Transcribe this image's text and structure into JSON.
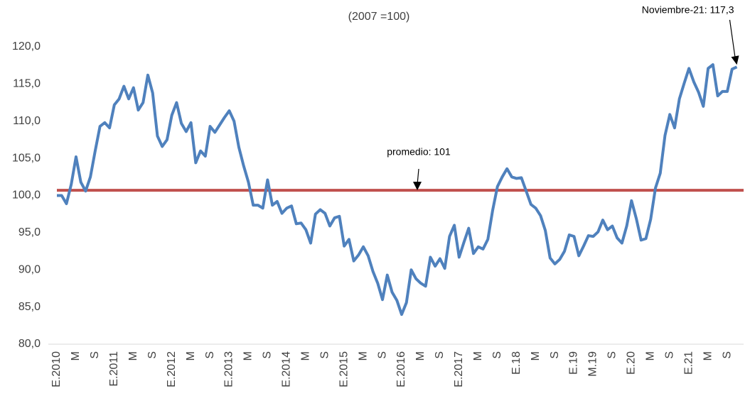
{
  "chart_data": {
    "type": "line",
    "subtitle": "(2007 =100)",
    "categories": [
      "E.2010",
      null,
      null,
      null,
      "M",
      null,
      null,
      null,
      "S",
      null,
      null,
      null,
      "E.2011",
      null,
      null,
      null,
      "M",
      null,
      null,
      null,
      "S",
      null,
      null,
      null,
      "E.2012",
      null,
      null,
      null,
      "M",
      null,
      null,
      null,
      "S",
      null,
      null,
      null,
      "E.2013",
      null,
      null,
      null,
      "M",
      null,
      null,
      null,
      "S",
      null,
      null,
      null,
      "E.2014",
      null,
      null,
      null,
      "M",
      null,
      null,
      null,
      "S",
      null,
      null,
      null,
      "E.2015",
      null,
      null,
      null,
      "M",
      null,
      null,
      null,
      "S",
      null,
      null,
      null,
      "E.2016",
      null,
      null,
      null,
      "M",
      null,
      null,
      null,
      "S",
      null,
      null,
      null,
      "E.2017",
      null,
      null,
      null,
      "M",
      null,
      null,
      null,
      "S",
      null,
      null,
      null,
      "E.18",
      null,
      null,
      null,
      "M",
      null,
      null,
      null,
      "S",
      null,
      null,
      null,
      "E.19",
      null,
      null,
      null,
      "M.19",
      null,
      null,
      null,
      "S",
      null,
      null,
      null,
      "E.20",
      null,
      null,
      null,
      "M",
      null,
      null,
      null,
      "S",
      null,
      null,
      null,
      "E.21",
      null,
      null,
      null,
      "M",
      null,
      null,
      null,
      "S",
      null,
      null
    ],
    "series": [
      {
        "color": "#4f81bd",
        "values": [
          100,
          100,
          98.9,
          101.5,
          105.2,
          101.8,
          100.6,
          102.5,
          106,
          109.3,
          109.8,
          109.1,
          112.2,
          113,
          114.7,
          113,
          114.5,
          111.5,
          112.5,
          116.2,
          113.8,
          108,
          106.6,
          107.5,
          110.8,
          112.5,
          109.7,
          108.6,
          109.8,
          104.4,
          106,
          105.3,
          109.3,
          108.5,
          109.5,
          110.5,
          111.4,
          110,
          106.5,
          104,
          101.8,
          98.7,
          98.7,
          98.3,
          102.1,
          98.7,
          99.2,
          97.6,
          98.3,
          98.6,
          96.2,
          96.3,
          95.4,
          93.6,
          97.5,
          98.1,
          97.6,
          95.9,
          97,
          97.2,
          93.2,
          94.1,
          91.2,
          92,
          93.1,
          91.9,
          89.8,
          88.2,
          86,
          89.3,
          87,
          85.9,
          84,
          85.6,
          90,
          88.8,
          88.2,
          87.8,
          91.7,
          90.5,
          91.5,
          90.2,
          94.5,
          96,
          91.7,
          93.7,
          95.6,
          92.2,
          93.1,
          92.8,
          94.1,
          98,
          101.2,
          102.5,
          103.6,
          102.5,
          102.3,
          102.4,
          100.6,
          98.8,
          98.3,
          97.3,
          95.3,
          91.6,
          90.8,
          91.4,
          92.5,
          94.7,
          94.5,
          91.9,
          93.2,
          94.6,
          94.5,
          95.1,
          96.7,
          95.4,
          95.9,
          94.3,
          93.6,
          95.9,
          99.3,
          96.9,
          94,
          94.2,
          96.8,
          101,
          103,
          108.1,
          110.9,
          109.1,
          113,
          115.1,
          117.1,
          115.3,
          113.9,
          112,
          117.1,
          117.6,
          113.4,
          114,
          114,
          117,
          117.3
        ]
      }
    ],
    "reference_line": {
      "value": 100.7,
      "color": "#c0504d",
      "label": "promedio: 101"
    },
    "last_point_label": "Noviembre-21: 117,3",
    "ylim": [
      80,
      120
    ],
    "yticks": [
      {
        "value": 80,
        "label": "80,0"
      },
      {
        "value": 85,
        "label": "85,0"
      },
      {
        "value": 90,
        "label": "90,0"
      },
      {
        "value": 95,
        "label": "95,0"
      },
      {
        "value": 100,
        "label": "100,0"
      },
      {
        "value": 105,
        "label": "105,0"
      },
      {
        "value": 110,
        "label": "110,0"
      },
      {
        "value": 115,
        "label": "115,0"
      },
      {
        "value": 120,
        "label": "120,0"
      }
    ],
    "grid": false
  }
}
